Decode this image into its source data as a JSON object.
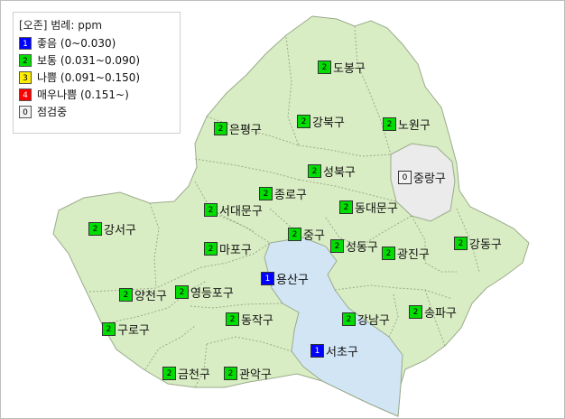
{
  "legend": {
    "title": "[오존] 범례: ppm",
    "items": [
      {
        "code": "1",
        "label": "좋음 (0~0.030)",
        "color": "#0000ff",
        "text_color": "#ffffff"
      },
      {
        "code": "2",
        "label": "보통 (0.031~0.090)",
        "color": "#00dd00",
        "text_color": "#000000"
      },
      {
        "code": "3",
        "label": "나쁨 (0.091~0.150)",
        "color": "#ffee00",
        "text_color": "#000000"
      },
      {
        "code": "4",
        "label": "매우나쁨 (0.151~)",
        "color": "#ff0000",
        "text_color": "#ffffff"
      },
      {
        "code": "0",
        "label": "점검중",
        "color": "#f2f2f2",
        "text_color": "#000000"
      }
    ]
  },
  "colors": {
    "land": "#d9edc4",
    "river": "#d2e5f5",
    "inspection": "#ebebeb",
    "border": "#9aab8c"
  },
  "districts": [
    {
      "name": "도봉구",
      "level": "2"
    },
    {
      "name": "은평구",
      "level": "2"
    },
    {
      "name": "강북구",
      "level": "2"
    },
    {
      "name": "노원구",
      "level": "2"
    },
    {
      "name": "성북구",
      "level": "2"
    },
    {
      "name": "중랑구",
      "level": "0"
    },
    {
      "name": "종로구",
      "level": "2"
    },
    {
      "name": "서대문구",
      "level": "2"
    },
    {
      "name": "동대문구",
      "level": "2"
    },
    {
      "name": "강서구",
      "level": "2"
    },
    {
      "name": "중구",
      "level": "2"
    },
    {
      "name": "마포구",
      "level": "2"
    },
    {
      "name": "성동구",
      "level": "2"
    },
    {
      "name": "광진구",
      "level": "2"
    },
    {
      "name": "강동구",
      "level": "2"
    },
    {
      "name": "용산구",
      "level": "1"
    },
    {
      "name": "양천구",
      "level": "2"
    },
    {
      "name": "영등포구",
      "level": "2"
    },
    {
      "name": "송파구",
      "level": "2"
    },
    {
      "name": "동작구",
      "level": "2"
    },
    {
      "name": "강남구",
      "level": "2"
    },
    {
      "name": "구로구",
      "level": "2"
    },
    {
      "name": "서초구",
      "level": "1"
    },
    {
      "name": "금천구",
      "level": "2"
    },
    {
      "name": "관악구",
      "level": "2"
    }
  ]
}
